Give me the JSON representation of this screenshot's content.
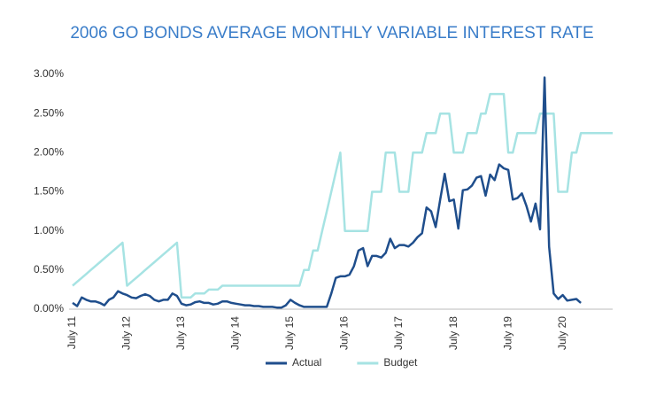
{
  "chart_data": {
    "type": "line",
    "title": "2006 GO BONDS AVERAGE MONTHLY VARIABLE INTEREST RATE",
    "categories": [
      "July 11",
      null,
      null,
      null,
      null,
      null,
      null,
      null,
      null,
      null,
      null,
      null,
      "July 12",
      null,
      null,
      null,
      null,
      null,
      null,
      null,
      null,
      null,
      null,
      null,
      "July 13",
      null,
      null,
      null,
      null,
      null,
      null,
      null,
      null,
      null,
      null,
      null,
      "July 14",
      null,
      null,
      null,
      null,
      null,
      null,
      null,
      null,
      null,
      null,
      null,
      "July 15",
      null,
      null,
      null,
      null,
      null,
      null,
      null,
      null,
      null,
      null,
      null,
      "July 16",
      null,
      null,
      null,
      null,
      null,
      null,
      null,
      null,
      null,
      null,
      null,
      "July 17",
      null,
      null,
      null,
      null,
      null,
      null,
      null,
      null,
      null,
      null,
      null,
      "July 18",
      null,
      null,
      null,
      null,
      null,
      null,
      null,
      null,
      null,
      null,
      null,
      "July 19",
      null,
      null,
      null,
      null,
      null,
      null,
      null,
      null,
      null,
      null,
      null,
      "July 20",
      null,
      null,
      null,
      null,
      null,
      null,
      null,
      null,
      null,
      null,
      null
    ],
    "series": [
      {
        "name": "Actual",
        "color": "#1f4e8c",
        "values": [
          0.08,
          0.04,
          0.15,
          0.12,
          0.1,
          0.1,
          0.08,
          0.05,
          0.12,
          0.15,
          0.23,
          0.2,
          0.18,
          0.15,
          0.14,
          0.17,
          0.19,
          0.17,
          0.12,
          0.1,
          0.12,
          0.12,
          0.2,
          0.17,
          0.07,
          0.05,
          0.06,
          0.09,
          0.1,
          0.08,
          0.08,
          0.06,
          0.07,
          0.1,
          0.1,
          0.08,
          0.07,
          0.06,
          0.05,
          0.05,
          0.04,
          0.04,
          0.03,
          0.03,
          0.03,
          0.02,
          0.02,
          0.05,
          0.12,
          0.08,
          0.05,
          0.03,
          0.03,
          0.03,
          0.03,
          0.03,
          0.03,
          0.2,
          0.4,
          0.42,
          0.42,
          0.44,
          0.55,
          0.75,
          0.78,
          0.55,
          0.68,
          0.68,
          0.66,
          0.72,
          0.9,
          0.78,
          0.82,
          0.82,
          0.8,
          0.85,
          0.92,
          0.97,
          1.3,
          1.25,
          1.05,
          1.4,
          1.73,
          1.38,
          1.4,
          1.03,
          1.52,
          1.53,
          1.58,
          1.68,
          1.7,
          1.45,
          1.72,
          1.65,
          1.85,
          1.8,
          1.78,
          1.4,
          1.42,
          1.48,
          1.32,
          1.12,
          1.35,
          1.02,
          2.96,
          0.8,
          0.2,
          0.13,
          0.18,
          0.11,
          0.12,
          0.13,
          0.08,
          null,
          null,
          null,
          null,
          null,
          null,
          null
        ]
      },
      {
        "name": "Budget",
        "color": "#a6e3e3",
        "values": [
          0.3,
          0.35,
          0.4,
          0.45,
          0.5,
          0.55,
          0.6,
          0.65,
          0.7,
          0.75,
          0.8,
          0.85,
          0.3,
          0.35,
          0.4,
          0.45,
          0.5,
          0.55,
          0.6,
          0.65,
          0.7,
          0.75,
          0.8,
          0.85,
          0.15,
          0.15,
          0.15,
          0.2,
          0.2,
          0.2,
          0.25,
          0.25,
          0.25,
          0.3,
          0.3,
          0.3,
          0.3,
          0.3,
          0.3,
          0.3,
          0.3,
          0.3,
          0.3,
          0.3,
          0.3,
          0.3,
          0.3,
          0.3,
          0.3,
          0.3,
          0.3,
          0.5,
          0.5,
          0.75,
          0.75,
          1.0,
          1.25,
          1.5,
          1.75,
          2.0,
          1.0,
          1.0,
          1.0,
          1.0,
          1.0,
          1.0,
          1.5,
          1.5,
          1.5,
          2.0,
          2.0,
          2.0,
          1.5,
          1.5,
          1.5,
          2.0,
          2.0,
          2.0,
          2.25,
          2.25,
          2.25,
          2.5,
          2.5,
          2.5,
          2.0,
          2.0,
          2.0,
          2.25,
          2.25,
          2.25,
          2.5,
          2.5,
          2.75,
          2.75,
          2.75,
          2.75,
          2.0,
          2.0,
          2.25,
          2.25,
          2.25,
          2.25,
          2.25,
          2.5,
          2.5,
          2.5,
          2.5,
          1.5,
          1.5,
          1.5,
          2.0,
          2.0,
          2.25,
          2.25,
          2.25,
          2.25,
          2.25,
          2.25,
          2.25,
          2.25
        ]
      }
    ],
    "ylim": [
      0,
      3
    ],
    "yticks": [
      {
        "value": 0,
        "label": "0.00%"
      },
      {
        "value": 0.5,
        "label": "0.50%"
      },
      {
        "value": 1,
        "label": "1.00%"
      },
      {
        "value": 1.5,
        "label": "1.50%"
      },
      {
        "value": 2,
        "label": "2.00%"
      },
      {
        "value": 2.5,
        "label": "2.50%"
      },
      {
        "value": 3,
        "label": "3.00%"
      }
    ],
    "grid": false,
    "legend": "bottom"
  }
}
